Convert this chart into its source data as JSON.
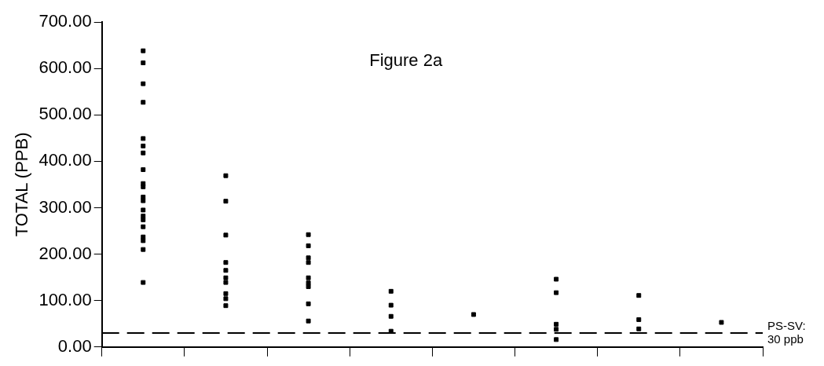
{
  "chart_data": {
    "type": "scatter",
    "title": "Figure 2a",
    "ylabel": "TOTAL (PPB)",
    "categories": [
      null,
      null,
      null,
      null,
      null,
      null,
      null,
      null
    ],
    "ylim": [
      0,
      700
    ],
    "yticks": [
      {
        "value": 0,
        "label": "0.00"
      },
      {
        "value": 100,
        "label": "100.00"
      },
      {
        "value": 200,
        "label": "200.00"
      },
      {
        "value": 300,
        "label": "300.00"
      },
      {
        "value": 400,
        "label": "400.00"
      },
      {
        "value": 500,
        "label": "500.00"
      },
      {
        "value": 600,
        "label": "600.00"
      },
      {
        "value": 700,
        "label": "700.00"
      }
    ],
    "tick_labels": "y",
    "grid": false,
    "legend": false,
    "marker": "square",
    "series": [
      {
        "color": "#000000",
        "values": [
          638,
          369,
          242,
          120,
          70,
          146,
          111,
          53
        ]
      },
      {
        "color": "#000000",
        "values": [
          612,
          314,
          218,
          90,
          null,
          117,
          59,
          null
        ]
      },
      {
        "color": "#000000",
        "values": [
          567,
          241,
          192,
          66,
          null,
          49,
          39,
          null
        ]
      },
      {
        "color": "#000000",
        "values": [
          527,
          182,
          182,
          34,
          null,
          38,
          null,
          null
        ]
      },
      {
        "color": "#000000",
        "values": [
          449,
          165,
          149,
          null,
          null,
          16,
          null,
          null
        ]
      },
      {
        "color": "#000000",
        "values": [
          433,
          149,
          138,
          null,
          null,
          null,
          null,
          null
        ]
      },
      {
        "color": "#000000",
        "values": [
          418,
          139,
          130,
          null,
          null,
          null,
          null,
          null
        ]
      },
      {
        "color": "#000000",
        "values": [
          382,
          115,
          93,
          null,
          null,
          null,
          null,
          null
        ]
      },
      {
        "color": "#000000",
        "values": [
          352,
          104,
          56,
          null,
          null,
          null,
          null,
          null
        ]
      },
      {
        "color": "#000000",
        "values": [
          345,
          89,
          null,
          null,
          null,
          null,
          null,
          null
        ]
      },
      {
        "color": "#000000",
        "values": [
          323,
          null,
          null,
          null,
          null,
          null,
          null,
          null
        ]
      },
      {
        "color": "#000000",
        "values": [
          315,
          null,
          null,
          null,
          null,
          null,
          null,
          null
        ]
      },
      {
        "color": "#000000",
        "values": [
          295,
          null,
          null,
          null,
          null,
          null,
          null,
          null
        ]
      },
      {
        "color": "#000000",
        "values": [
          282,
          null,
          null,
          null,
          null,
          null,
          null,
          null
        ]
      },
      {
        "color": "#000000",
        "values": [
          274,
          null,
          null,
          null,
          null,
          null,
          null,
          null
        ]
      },
      {
        "color": "#000000",
        "values": [
          259,
          null,
          null,
          null,
          null,
          null,
          null,
          null
        ]
      },
      {
        "color": "#000000",
        "values": [
          237,
          null,
          null,
          null,
          null,
          null,
          null,
          null
        ]
      },
      {
        "color": "#000000",
        "values": [
          229,
          null,
          null,
          null,
          null,
          null,
          null,
          null
        ]
      },
      {
        "color": "#000000",
        "values": [
          210,
          null,
          null,
          null,
          null,
          null,
          null,
          null
        ]
      },
      {
        "color": "#000000",
        "values": [
          139,
          null,
          null,
          null,
          null,
          null,
          null,
          null
        ]
      }
    ],
    "ref_lines": [
      {
        "axis": "y",
        "value": 30,
        "label": "PS-SV:\n30 ppb",
        "line_style": "dashed",
        "color": "#000000"
      }
    ]
  }
}
